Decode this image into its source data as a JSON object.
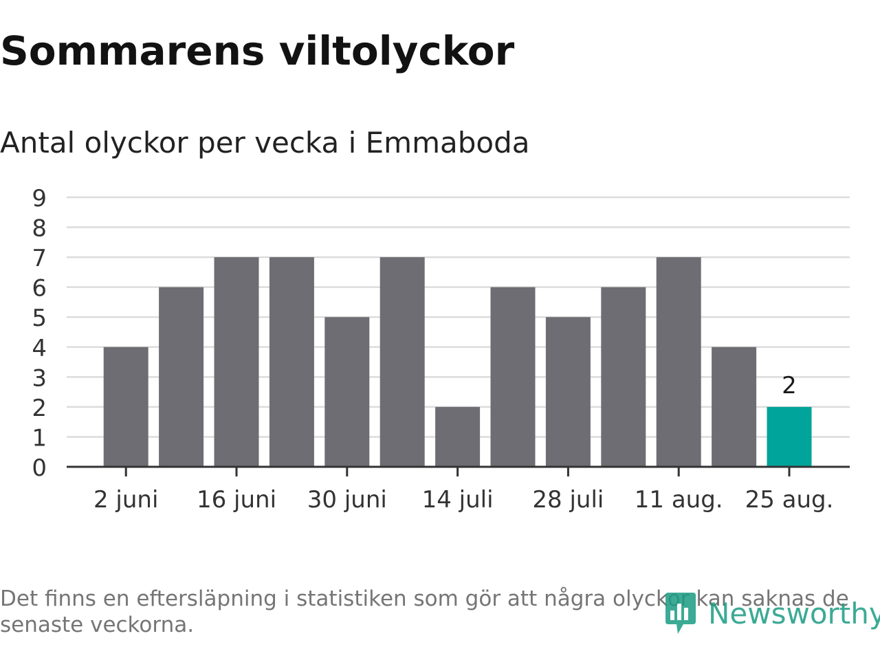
{
  "title": "Sommarens viltolyckor",
  "subtitle": "Antal olyckor per vecka i Emmaboda",
  "footnote": "Det finns en eftersläpning i statistiken som gör att några olyckor kan saknas de senaste veckorna.",
  "logo": {
    "text": "Newsworthy",
    "icon": "newsworthy-logo-icon"
  },
  "colors": {
    "bar": "#6e6d73",
    "highlight": "#00a49a",
    "grid": "#dcdcdc",
    "axis": "#333333",
    "brand": "#1b9c83"
  },
  "chart_data": {
    "type": "bar",
    "title": "Sommarens viltolyckor",
    "subtitle": "Antal olyckor per vecka i Emmaboda",
    "xlabel": "",
    "ylabel": "",
    "ylim": [
      0,
      9
    ],
    "yticks": [
      "0",
      "1",
      "2",
      "3",
      "4",
      "5",
      "6",
      "7",
      "8",
      "9"
    ],
    "grid": true,
    "values": [
      4,
      6,
      7,
      7,
      5,
      7,
      2,
      6,
      5,
      6,
      7,
      4,
      2
    ],
    "highlight_index": 12,
    "highlight_label": "2",
    "xticks": [
      {
        "index": 0,
        "label": "2 juni"
      },
      {
        "index": 2,
        "label": "16 juni"
      },
      {
        "index": 4,
        "label": "30 juni"
      },
      {
        "index": 6,
        "label": "14 juli"
      },
      {
        "index": 8,
        "label": "28 juli"
      },
      {
        "index": 10,
        "label": "11 aug."
      },
      {
        "index": 12,
        "label": "25 aug."
      }
    ]
  }
}
